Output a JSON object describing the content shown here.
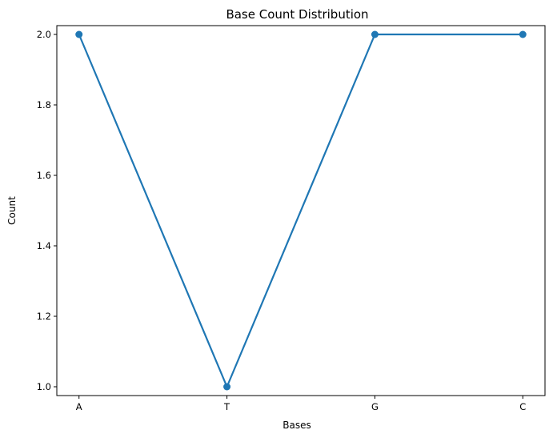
{
  "chart_data": {
    "type": "line",
    "title": "Base Count Distribution",
    "xlabel": "Bases",
    "ylabel": "Count",
    "categories": [
      "A",
      "T",
      "G",
      "C"
    ],
    "series": [
      {
        "values": [
          2,
          1,
          2,
          2
        ],
        "color": "#1f77b4",
        "marker": "circle"
      }
    ],
    "ylim": [
      0.975,
      2.025
    ],
    "yticks": [
      1.0,
      1.2,
      1.4,
      1.6,
      1.8,
      2.0
    ],
    "ytick_labels": [
      "1.0",
      "1.2",
      "1.4",
      "1.6",
      "1.8",
      "2.0"
    ],
    "grid": false,
    "legend": "none"
  }
}
